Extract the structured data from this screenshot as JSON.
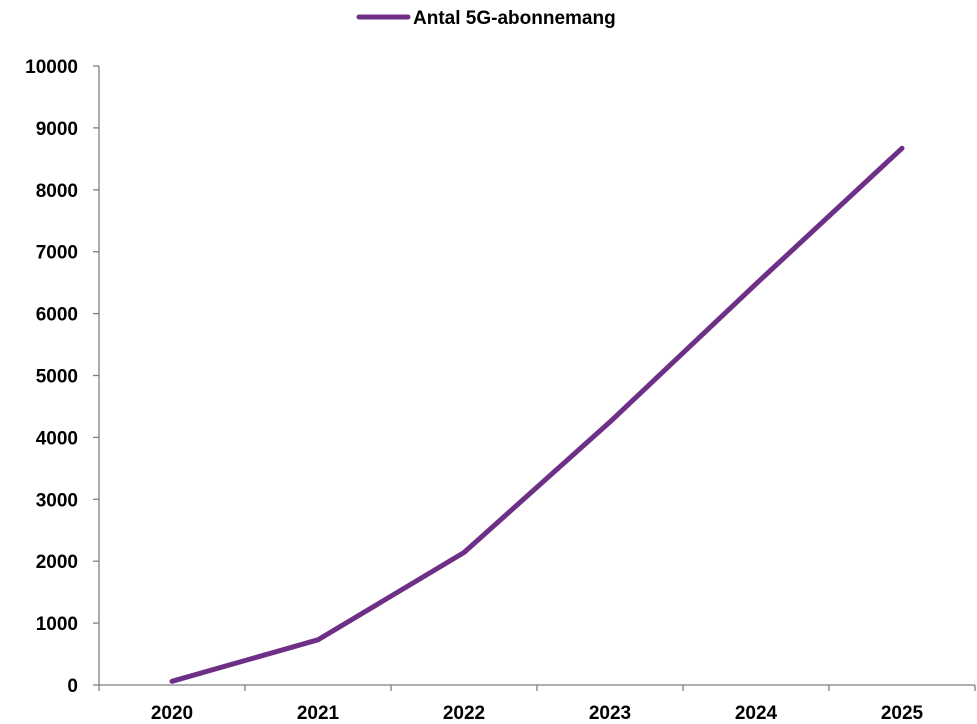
{
  "chart_data": {
    "type": "line",
    "x": [
      "2020",
      "2021",
      "2022",
      "2023",
      "2024",
      "2025"
    ],
    "series": [
      {
        "name": "Antal 5G-abonnemang",
        "values": [
          60,
          730,
          2140,
          4250,
          6480,
          8670
        ]
      }
    ],
    "yticks": [
      "0",
      "1000",
      "2000",
      "3000",
      "4000",
      "5000",
      "6000",
      "7000",
      "8000",
      "9000",
      "10000"
    ],
    "ylim": [
      0,
      10000
    ],
    "grid": false,
    "legend_position": "top-center",
    "colors": {
      "series": "#6e2f86",
      "axis": "#7f7f7f"
    }
  }
}
